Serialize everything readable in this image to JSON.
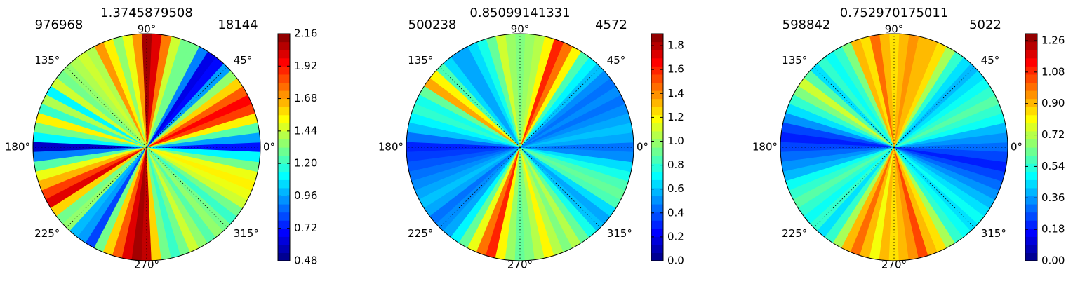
{
  "chart_data": [
    {
      "type": "polar-contour",
      "title": "1.3745879508",
      "left_label": "976968",
      "right_label": "18144",
      "angle_ticks": [
        "0°",
        "45°",
        "90°",
        "135°",
        "180°",
        "225°",
        "270°",
        "315°"
      ],
      "colorbar": {
        "ticks": [
          "0.48",
          "0.72",
          "0.96",
          "1.20",
          "1.44",
          "1.68",
          "1.92",
          "2.16"
        ],
        "min": 0.48,
        "max": 2.16
      },
      "sectors": [
        {
          "a": 0,
          "v": 0.72
        },
        {
          "a": 5,
          "v": 0.96
        },
        {
          "a": 10,
          "v": 1.25
        },
        {
          "a": 15,
          "v": 1.55
        },
        {
          "a": 20,
          "v": 1.85
        },
        {
          "a": 25,
          "v": 1.95
        },
        {
          "a": 30,
          "v": 1.8
        },
        {
          "a": 35,
          "v": 1.6
        },
        {
          "a": 40,
          "v": 1.35
        },
        {
          "a": 45,
          "v": 0.95
        },
        {
          "a": 50,
          "v": 0.7
        },
        {
          "a": 55,
          "v": 0.65
        },
        {
          "a": 60,
          "v": 0.9
        },
        {
          "a": 65,
          "v": 1.3
        },
        {
          "a": 70,
          "v": 1.3
        },
        {
          "a": 75,
          "v": 1.45
        },
        {
          "a": 80,
          "v": 1.75
        },
        {
          "a": 85,
          "v": 2.0
        },
        {
          "a": 90,
          "v": 2.1
        },
        {
          "a": 95,
          "v": 1.7
        },
        {
          "a": 100,
          "v": 1.5
        },
        {
          "a": 105,
          "v": 1.35
        },
        {
          "a": 110,
          "v": 1.55
        },
        {
          "a": 115,
          "v": 1.7
        },
        {
          "a": 120,
          "v": 1.4
        },
        {
          "a": 125,
          "v": 1.45
        },
        {
          "a": 130,
          "v": 1.4
        },
        {
          "a": 135,
          "v": 1.35
        },
        {
          "a": 140,
          "v": 1.3
        },
        {
          "a": 145,
          "v": 1.45
        },
        {
          "a": 150,
          "v": 1.1
        },
        {
          "a": 155,
          "v": 1.4
        },
        {
          "a": 160,
          "v": 1.2
        },
        {
          "a": 165,
          "v": 1.55
        },
        {
          "a": 170,
          "v": 1.3
        },
        {
          "a": 175,
          "v": 1.1
        },
        {
          "a": 180,
          "v": 0.6
        },
        {
          "a": 185,
          "v": 0.9
        },
        {
          "a": 190,
          "v": 1.25
        },
        {
          "a": 195,
          "v": 1.5
        },
        {
          "a": 200,
          "v": 1.65
        },
        {
          "a": 205,
          "v": 1.85
        },
        {
          "a": 210,
          "v": 2.0
        },
        {
          "a": 215,
          "v": 1.6
        },
        {
          "a": 220,
          "v": 1.3
        },
        {
          "a": 225,
          "v": 1.35
        },
        {
          "a": 230,
          "v": 1.0
        },
        {
          "a": 235,
          "v": 0.95
        },
        {
          "a": 240,
          "v": 0.8
        },
        {
          "a": 245,
          "v": 1.3
        },
        {
          "a": 250,
          "v": 1.6
        },
        {
          "a": 255,
          "v": 1.8
        },
        {
          "a": 260,
          "v": 2.0
        },
        {
          "a": 265,
          "v": 2.1
        },
        {
          "a": 270,
          "v": 2.05
        },
        {
          "a": 275,
          "v": 1.6
        },
        {
          "a": 280,
          "v": 1.3
        },
        {
          "a": 285,
          "v": 1.2
        },
        {
          "a": 290,
          "v": 1.3
        },
        {
          "a": 295,
          "v": 1.45
        },
        {
          "a": 300,
          "v": 1.35
        },
        {
          "a": 305,
          "v": 1.25
        },
        {
          "a": 310,
          "v": 1.35
        },
        {
          "a": 315,
          "v": 1.3
        },
        {
          "a": 320,
          "v": 1.2
        },
        {
          "a": 325,
          "v": 1.3
        },
        {
          "a": 330,
          "v": 1.45
        },
        {
          "a": 335,
          "v": 1.5
        },
        {
          "a": 340,
          "v": 1.55
        },
        {
          "a": 345,
          "v": 1.5
        },
        {
          "a": 350,
          "v": 1.3
        },
        {
          "a": 355,
          "v": 1.1
        }
      ]
    },
    {
      "type": "polar-contour",
      "title": "0.85099141331",
      "left_label": "500238",
      "right_label": "4572",
      "angle_ticks": [
        "0°",
        "45°",
        "90°",
        "135°",
        "180°",
        "225°",
        "270°",
        "315°"
      ],
      "colorbar": {
        "ticks": [
          "0.0",
          "0.2",
          "0.4",
          "0.6",
          "0.8",
          "1.0",
          "1.2",
          "1.4",
          "1.6",
          "1.8"
        ],
        "min": 0.0,
        "max": 1.9
      },
      "sectors": [
        {
          "a": 0,
          "v": 0.45
        },
        {
          "a": 5,
          "v": 0.55
        },
        {
          "a": 10,
          "v": 0.6
        },
        {
          "a": 15,
          "v": 0.55
        },
        {
          "a": 20,
          "v": 0.5
        },
        {
          "a": 25,
          "v": 0.45
        },
        {
          "a": 30,
          "v": 0.5
        },
        {
          "a": 35,
          "v": 0.45
        },
        {
          "a": 40,
          "v": 0.5
        },
        {
          "a": 45,
          "v": 0.6
        },
        {
          "a": 50,
          "v": 0.7
        },
        {
          "a": 55,
          "v": 0.85
        },
        {
          "a": 60,
          "v": 1.2
        },
        {
          "a": 65,
          "v": 1.45
        },
        {
          "a": 70,
          "v": 1.6
        },
        {
          "a": 75,
          "v": 1.2
        },
        {
          "a": 80,
          "v": 1.05
        },
        {
          "a": 85,
          "v": 1.0
        },
        {
          "a": 90,
          "v": 0.95
        },
        {
          "a": 95,
          "v": 1.0
        },
        {
          "a": 100,
          "v": 1.1
        },
        {
          "a": 105,
          "v": 0.9
        },
        {
          "a": 110,
          "v": 0.75
        },
        {
          "a": 115,
          "v": 0.65
        },
        {
          "a": 120,
          "v": 0.55
        },
        {
          "a": 125,
          "v": 0.55
        },
        {
          "a": 130,
          "v": 0.65
        },
        {
          "a": 135,
          "v": 0.85
        },
        {
          "a": 140,
          "v": 1.2
        },
        {
          "a": 145,
          "v": 1.35
        },
        {
          "a": 150,
          "v": 0.9
        },
        {
          "a": 155,
          "v": 0.75
        },
        {
          "a": 160,
          "v": 0.8
        },
        {
          "a": 165,
          "v": 0.7
        },
        {
          "a": 170,
          "v": 0.6
        },
        {
          "a": 175,
          "v": 0.45
        },
        {
          "a": 180,
          "v": 0.3
        },
        {
          "a": 185,
          "v": 0.35
        },
        {
          "a": 190,
          "v": 0.4
        },
        {
          "a": 195,
          "v": 0.45
        },
        {
          "a": 200,
          "v": 0.5
        },
        {
          "a": 205,
          "v": 0.55
        },
        {
          "a": 210,
          "v": 0.6
        },
        {
          "a": 215,
          "v": 0.55
        },
        {
          "a": 220,
          "v": 0.45
        },
        {
          "a": 225,
          "v": 0.5
        },
        {
          "a": 230,
          "v": 0.55
        },
        {
          "a": 235,
          "v": 0.7
        },
        {
          "a": 240,
          "v": 0.9
        },
        {
          "a": 245,
          "v": 1.15
        },
        {
          "a": 250,
          "v": 1.45
        },
        {
          "a": 255,
          "v": 1.6
        },
        {
          "a": 260,
          "v": 1.2
        },
        {
          "a": 265,
          "v": 1.0
        },
        {
          "a": 270,
          "v": 0.9
        },
        {
          "a": 275,
          "v": 0.95
        },
        {
          "a": 280,
          "v": 1.05
        },
        {
          "a": 285,
          "v": 1.2
        },
        {
          "a": 290,
          "v": 1.05
        },
        {
          "a": 295,
          "v": 0.95
        },
        {
          "a": 300,
          "v": 1.05
        },
        {
          "a": 305,
          "v": 0.9
        },
        {
          "a": 310,
          "v": 0.75
        },
        {
          "a": 315,
          "v": 0.6
        },
        {
          "a": 320,
          "v": 0.55
        },
        {
          "a": 325,
          "v": 0.65
        },
        {
          "a": 330,
          "v": 0.85
        },
        {
          "a": 335,
          "v": 0.9
        },
        {
          "a": 340,
          "v": 0.85
        },
        {
          "a": 345,
          "v": 0.75
        },
        {
          "a": 350,
          "v": 0.65
        },
        {
          "a": 355,
          "v": 0.5
        }
      ]
    },
    {
      "type": "polar-contour",
      "title": "0.752970175011",
      "left_label": "598842",
      "right_label": "5022",
      "angle_ticks": [
        "0°",
        "45°",
        "90°",
        "135°",
        "180°",
        "225°",
        "270°",
        "315°"
      ],
      "colorbar": {
        "ticks": [
          "0.00",
          "0.18",
          "0.36",
          "0.54",
          "0.72",
          "0.90",
          "1.08",
          "1.26"
        ],
        "min": 0.0,
        "max": 1.3
      },
      "sectors": [
        {
          "a": 0,
          "v": 0.3
        },
        {
          "a": 5,
          "v": 0.35
        },
        {
          "a": 10,
          "v": 0.4
        },
        {
          "a": 15,
          "v": 0.5
        },
        {
          "a": 20,
          "v": 0.55
        },
        {
          "a": 25,
          "v": 0.6
        },
        {
          "a": 30,
          "v": 0.55
        },
        {
          "a": 35,
          "v": 0.5
        },
        {
          "a": 40,
          "v": 0.45
        },
        {
          "a": 45,
          "v": 0.4
        },
        {
          "a": 50,
          "v": 0.45
        },
        {
          "a": 55,
          "v": 0.55
        },
        {
          "a": 60,
          "v": 0.7
        },
        {
          "a": 65,
          "v": 0.85
        },
        {
          "a": 70,
          "v": 0.9
        },
        {
          "a": 75,
          "v": 0.9
        },
        {
          "a": 80,
          "v": 0.95
        },
        {
          "a": 85,
          "v": 0.9
        },
        {
          "a": 90,
          "v": 0.85
        },
        {
          "a": 95,
          "v": 0.9
        },
        {
          "a": 100,
          "v": 1.0
        },
        {
          "a": 105,
          "v": 0.85
        },
        {
          "a": 110,
          "v": 0.9
        },
        {
          "a": 115,
          "v": 0.65
        },
        {
          "a": 120,
          "v": 0.55
        },
        {
          "a": 125,
          "v": 0.5
        },
        {
          "a": 130,
          "v": 0.55
        },
        {
          "a": 135,
          "v": 0.45
        },
        {
          "a": 140,
          "v": 0.6
        },
        {
          "a": 145,
          "v": 0.75
        },
        {
          "a": 150,
          "v": 0.65
        },
        {
          "a": 155,
          "v": 0.55
        },
        {
          "a": 160,
          "v": 0.45
        },
        {
          "a": 165,
          "v": 0.35
        },
        {
          "a": 170,
          "v": 0.25
        },
        {
          "a": 175,
          "v": 0.2
        },
        {
          "a": 180,
          "v": 0.25
        },
        {
          "a": 185,
          "v": 0.3
        },
        {
          "a": 190,
          "v": 0.35
        },
        {
          "a": 195,
          "v": 0.4
        },
        {
          "a": 200,
          "v": 0.5
        },
        {
          "a": 205,
          "v": 0.55
        },
        {
          "a": 210,
          "v": 0.6
        },
        {
          "a": 215,
          "v": 0.55
        },
        {
          "a": 220,
          "v": 0.5
        },
        {
          "a": 225,
          "v": 0.55
        },
        {
          "a": 230,
          "v": 0.45
        },
        {
          "a": 235,
          "v": 0.55
        },
        {
          "a": 240,
          "v": 0.7
        },
        {
          "a": 245,
          "v": 0.9
        },
        {
          "a": 250,
          "v": 1.0
        },
        {
          "a": 255,
          "v": 0.9
        },
        {
          "a": 260,
          "v": 0.8
        },
        {
          "a": 265,
          "v": 0.9
        },
        {
          "a": 270,
          "v": 0.85
        },
        {
          "a": 275,
          "v": 0.9
        },
        {
          "a": 280,
          "v": 0.95
        },
        {
          "a": 285,
          "v": 1.05
        },
        {
          "a": 290,
          "v": 0.9
        },
        {
          "a": 295,
          "v": 0.85
        },
        {
          "a": 300,
          "v": 0.7
        },
        {
          "a": 305,
          "v": 0.55
        },
        {
          "a": 310,
          "v": 0.5
        },
        {
          "a": 315,
          "v": 0.45
        },
        {
          "a": 320,
          "v": 0.5
        },
        {
          "a": 325,
          "v": 0.45
        },
        {
          "a": 330,
          "v": 0.4
        },
        {
          "a": 335,
          "v": 0.35
        },
        {
          "a": 340,
          "v": 0.3
        },
        {
          "a": 345,
          "v": 0.25
        },
        {
          "a": 350,
          "v": 0.2
        },
        {
          "a": 355,
          "v": 0.25
        }
      ]
    }
  ]
}
